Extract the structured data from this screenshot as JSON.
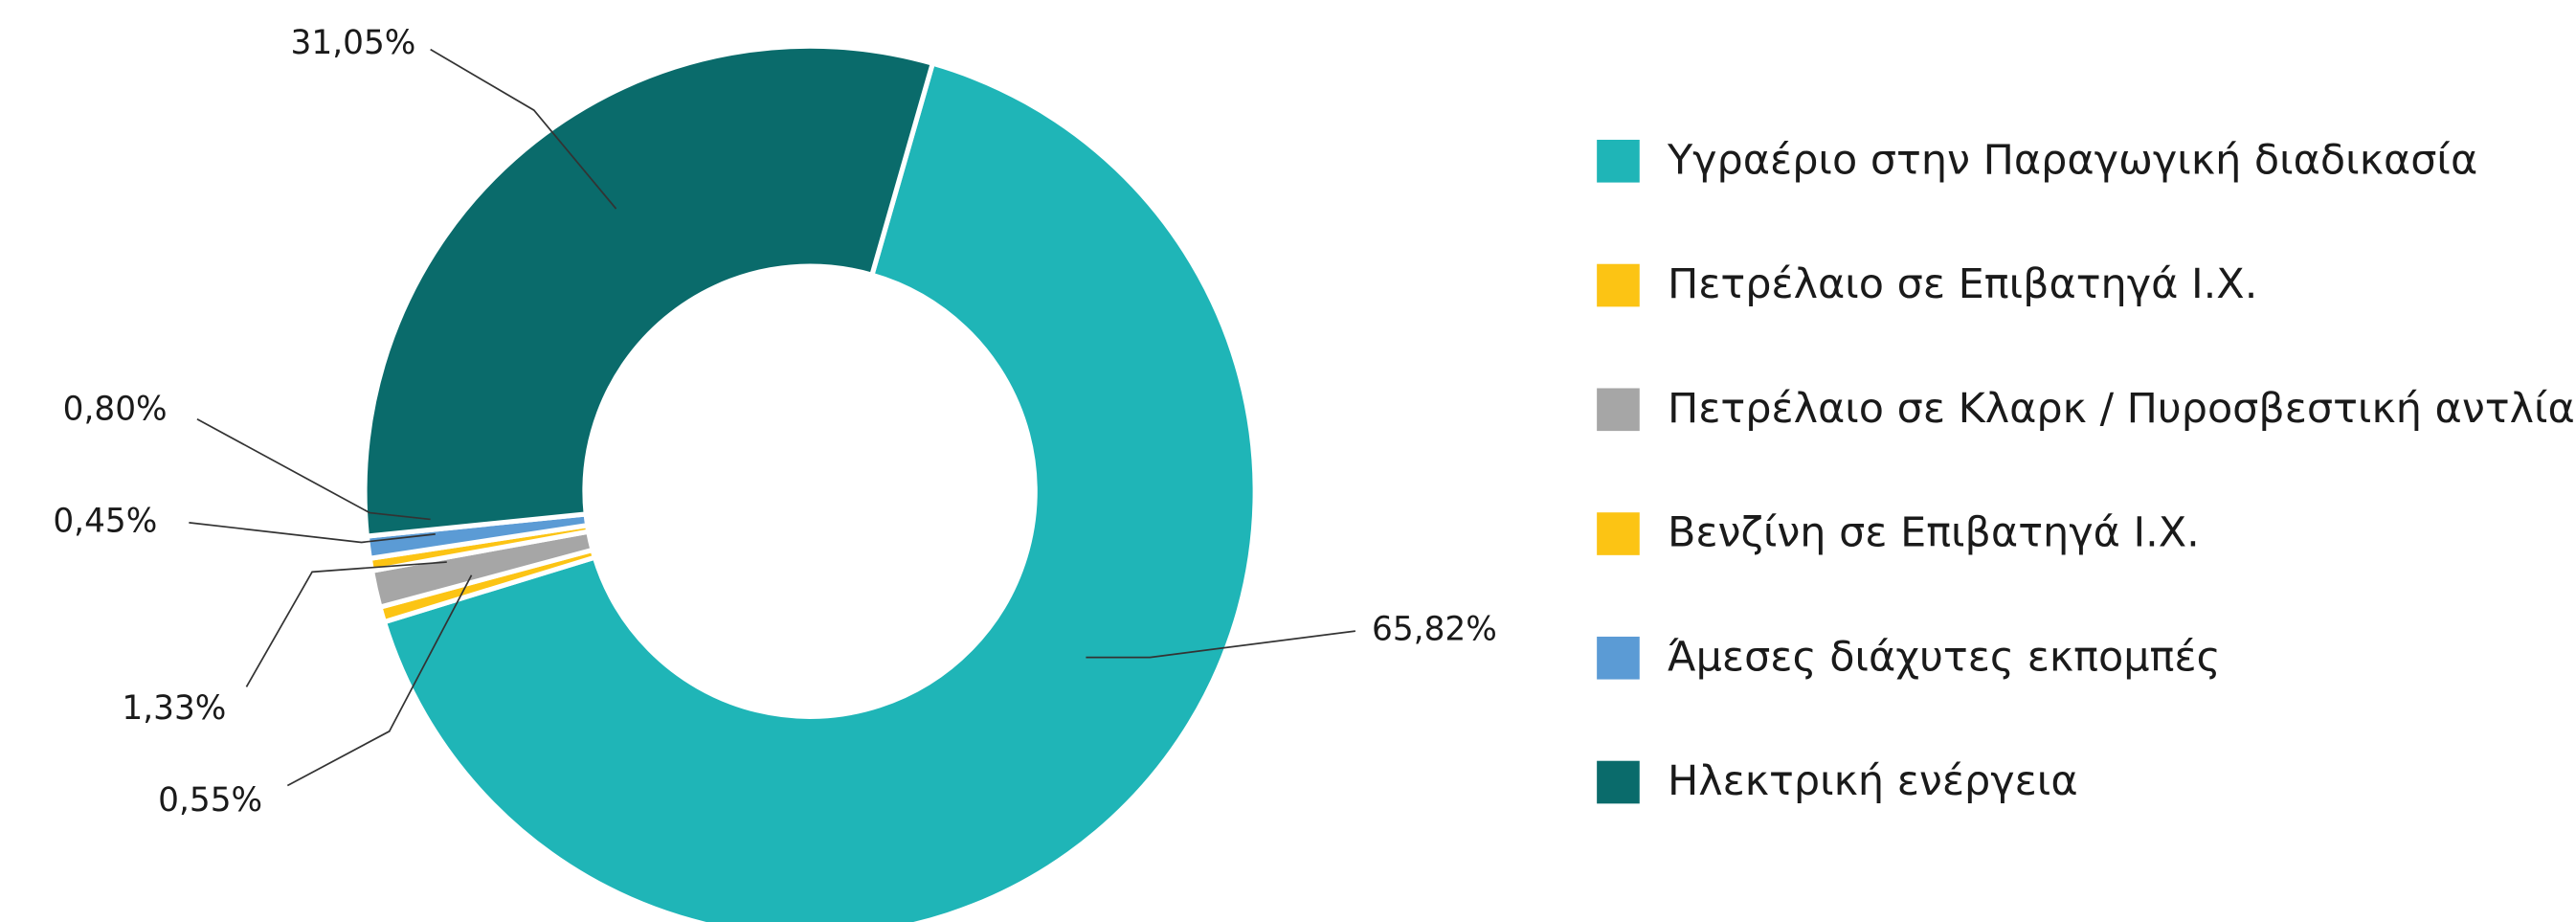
{
  "chart_data": {
    "type": "pie",
    "categories": [
      "Υγραέριο στην Παραγωγική διαδικασία",
      "Πετρέλαιο σε Επιβατηγά Ι.Χ.",
      "Πετρέλαιο σε Κλαρκ / Πυροσβεστική αντλία",
      "Βενζίνη σε Επιβατηγά Ι.Χ.",
      "Άμεσες διάχυτες εκπομπές",
      "Ηλεκτρική ενέργεια"
    ],
    "values": [
      65.82,
      0.55,
      1.33,
      0.45,
      0.8,
      31.05
    ],
    "value_labels": [
      "65,82%",
      "0,55%",
      "1,33%",
      "0,45%",
      "0,80%",
      "31,05%"
    ],
    "colors": [
      "#1fb5b7",
      "#fcc414",
      "#a6a6a6",
      "#fcc414",
      "#5b9bd5",
      "#0a6b6b"
    ],
    "legend": "right"
  }
}
